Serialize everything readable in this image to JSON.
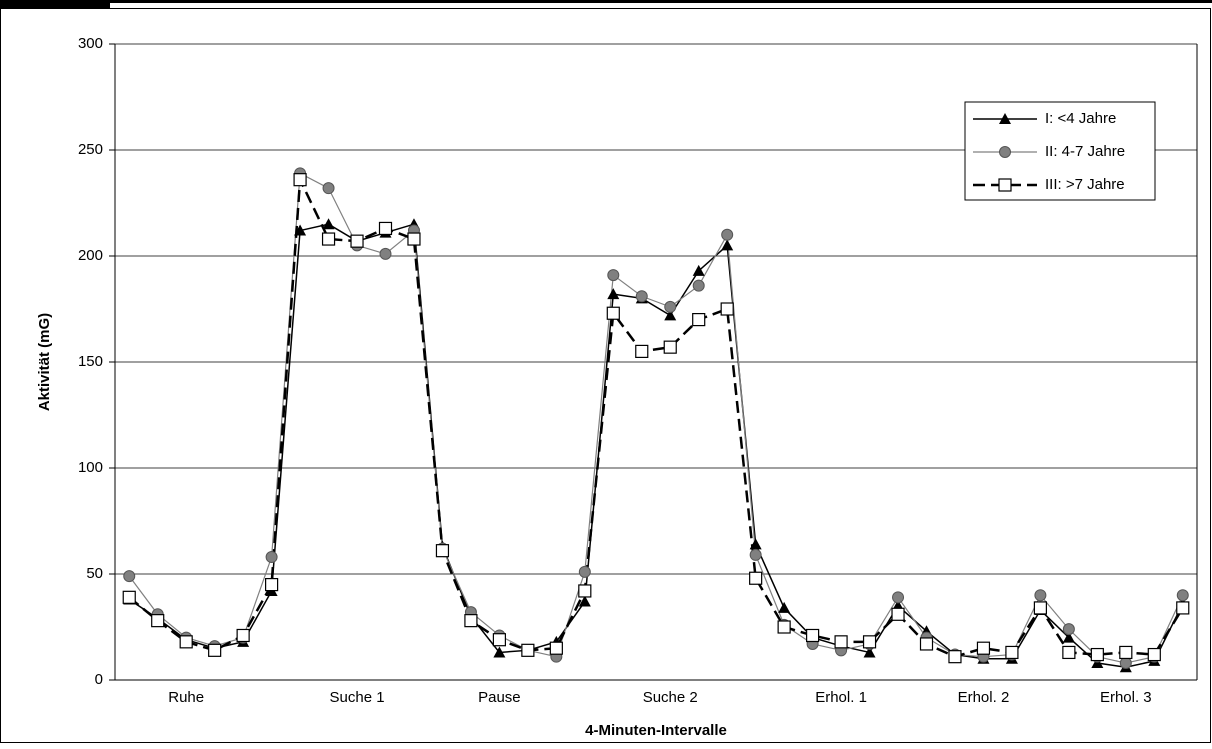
{
  "chart_data": {
    "type": "line",
    "y_label": "Aktivität (mG)",
    "x_label": "4-Minuten-Intervalle",
    "categories": [
      null,
      null,
      "Ruhe",
      null,
      null,
      null,
      null,
      null,
      "Suche 1",
      null,
      null,
      null,
      null,
      "Pause",
      null,
      null,
      null,
      null,
      null,
      "Suche 2",
      null,
      null,
      null,
      null,
      null,
      "Erhol. 1",
      null,
      null,
      null,
      null,
      "Erhol. 2",
      null,
      null,
      null,
      null,
      "Erhol. 3",
      null,
      null
    ],
    "series": [
      {
        "name": "I: <4 Jahre",
        "color": "#000000",
        "marker": "triangle",
        "values": [
          38,
          29,
          19,
          15,
          18,
          42,
          212,
          215,
          207,
          211,
          215,
          63,
          30,
          13,
          14,
          18,
          37,
          182,
          180,
          172,
          193,
          205,
          64,
          34,
          20,
          16,
          13,
          35,
          23,
          12,
          10,
          10,
          33,
          20,
          8,
          6,
          9,
          36
        ]
      },
      {
        "name": "II: 4-7 Jahre",
        "color": "#808080",
        "marker": "circle",
        "values": [
          49,
          31,
          20,
          16,
          20,
          58,
          239,
          232,
          205,
          201,
          212,
          62,
          32,
          21,
          14,
          11,
          51,
          191,
          181,
          176,
          186,
          210,
          59,
          26,
          17,
          14,
          17,
          39,
          20,
          12,
          11,
          12,
          40,
          24,
          11,
          8,
          11,
          40
        ]
      },
      {
        "name": "III: >7 Jahre",
        "color": "#000000",
        "marker": "square",
        "dashed": true,
        "values": [
          39,
          28,
          18,
          14,
          21,
          45,
          236,
          208,
          207,
          213,
          208,
          61,
          28,
          19,
          14,
          15,
          42,
          173,
          155,
          157,
          170,
          175,
          48,
          25,
          21,
          18,
          18,
          31,
          17,
          11,
          15,
          13,
          34,
          13,
          12,
          13,
          12,
          34
        ]
      }
    ],
    "ylim": [
      0,
      300
    ],
    "yticks": [
      0,
      50,
      100,
      150,
      200,
      250,
      300
    ],
    "grid": true,
    "legend": "upper right"
  }
}
